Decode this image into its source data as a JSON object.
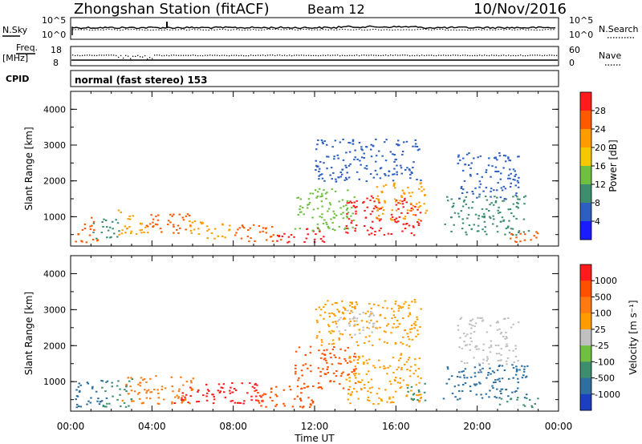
{
  "header": {
    "station": "Zhongshan Station (fitACF)",
    "beam": "Beam 12",
    "date": "10/Nov/2016"
  },
  "status_panels": {
    "noise": {
      "left_label": "N.Sky",
      "right_label": "N.Search",
      "left_ticks": [
        "10^5",
        "10^0"
      ],
      "right_ticks": [
        "10^5",
        "10^0"
      ]
    },
    "freq": {
      "left_label_top": "Freq.",
      "left_label_bottom": "[MHz]",
      "right_label": "Nave",
      "left_ticks": [
        "18",
        "8"
      ],
      "right_ticks": [
        "60",
        "0"
      ]
    },
    "cpid": {
      "label": "CPID",
      "text": "normal (fast stereo) 153"
    }
  },
  "chart_data": [
    {
      "type": "heatmap",
      "title": "",
      "xlabel": "Time UT",
      "ylabel": "Slant Range [km]",
      "x_ticks": [
        "00:00",
        "04:00",
        "08:00",
        "12:00",
        "16:00",
        "20:00",
        "00:00"
      ],
      "y_ticks": [
        "1000",
        "2000",
        "3000",
        "4000"
      ],
      "xlim": [
        0,
        24
      ],
      "ylim": [
        180,
        4500
      ],
      "colorbar": {
        "label": "Power [dB]",
        "ticks": [
          "4",
          "8",
          "12",
          "16",
          "20",
          "24",
          "28"
        ],
        "colors": [
          "#1b1bff",
          "#2c5fbf",
          "#3d8e6e",
          "#6fbf40",
          "#f5c800",
          "#ff9d00",
          "#ff5a00",
          "#ff1b1b"
        ]
      },
      "scatter_regions": [
        {
          "t0": 0.2,
          "t1": 1.3,
          "r0": 300,
          "r1": 1000,
          "color": "#ff5a00"
        },
        {
          "t0": 1.0,
          "t1": 2.4,
          "r0": 400,
          "r1": 1000,
          "color": "#3d8e6e"
        },
        {
          "t0": 2.3,
          "t1": 3.8,
          "r0": 500,
          "r1": 1200,
          "color": "#ff9d00"
        },
        {
          "t0": 3.6,
          "t1": 6.0,
          "r0": 500,
          "r1": 1100,
          "color": "#ff5a00"
        },
        {
          "t0": 5.8,
          "t1": 8.0,
          "r0": 400,
          "r1": 900,
          "color": "#ff9d00"
        },
        {
          "t0": 8.0,
          "t1": 10.4,
          "r0": 300,
          "r1": 800,
          "color": "#ff5a00"
        },
        {
          "t0": 10.0,
          "t1": 12.5,
          "r0": 300,
          "r1": 700,
          "color": "#ff1b1b"
        },
        {
          "t0": 11.0,
          "t1": 14.0,
          "r0": 600,
          "r1": 1800,
          "color": "#6fbf40"
        },
        {
          "t0": 12.0,
          "t1": 17.2,
          "r0": 2000,
          "r1": 3200,
          "color": "#2c5fbf"
        },
        {
          "t0": 13.5,
          "t1": 17.2,
          "r0": 500,
          "r1": 1600,
          "color": "#ff1b1b"
        },
        {
          "t0": 15.0,
          "t1": 17.5,
          "r0": 900,
          "r1": 2000,
          "color": "#ff9d00"
        },
        {
          "t0": 18.3,
          "t1": 22.5,
          "r0": 500,
          "r1": 1600,
          "color": "#3d8e6e"
        },
        {
          "t0": 19.0,
          "t1": 22.0,
          "r0": 1500,
          "r1": 2800,
          "color": "#2c5fbf"
        },
        {
          "t0": 21.0,
          "t1": 23.0,
          "r0": 300,
          "r1": 600,
          "color": "#ff5a00"
        }
      ]
    },
    {
      "type": "heatmap",
      "title": "",
      "xlabel": "Time UT",
      "ylabel": "Slant Range [km]",
      "x_ticks": [
        "00:00",
        "04:00",
        "08:00",
        "12:00",
        "16:00",
        "20:00",
        "00:00"
      ],
      "y_ticks": [
        "1000",
        "2000",
        "3000",
        "4000"
      ],
      "xlim": [
        0,
        24
      ],
      "ylim": [
        180,
        4500
      ],
      "colorbar": {
        "label": "Velocity [m s⁻¹]",
        "ticks": [
          "1000",
          "500",
          "100",
          "25",
          "-25",
          "-100",
          "-500",
          "-1000"
        ],
        "colors": [
          "#1b3fbf",
          "#2c6fa0",
          "#3d8e6e",
          "#6fbf40",
          "#c0c0c0",
          "#ff9d00",
          "#ff7a10",
          "#ff5000",
          "#ff1b1b"
        ]
      },
      "scatter_regions": [
        {
          "t0": 0.2,
          "t1": 1.8,
          "r0": 300,
          "r1": 1100,
          "color": "#2c6fa0"
        },
        {
          "t0": 1.5,
          "t1": 3.0,
          "r0": 300,
          "r1": 1100,
          "color": "#3d8e6e"
        },
        {
          "t0": 2.5,
          "t1": 6.0,
          "r0": 400,
          "r1": 1200,
          "color": "#ff7a10"
        },
        {
          "t0": 5.0,
          "t1": 9.5,
          "r0": 400,
          "r1": 1000,
          "color": "#ff1b1b"
        },
        {
          "t0": 9.0,
          "t1": 12.0,
          "r0": 300,
          "r1": 900,
          "color": "#ff5000"
        },
        {
          "t0": 11.0,
          "t1": 14.0,
          "r0": 800,
          "r1": 2000,
          "color": "#ff5000"
        },
        {
          "t0": 12.0,
          "t1": 17.2,
          "r0": 2000,
          "r1": 3300,
          "color": "#ff9d00"
        },
        {
          "t0": 13.0,
          "t1": 15.0,
          "r0": 2300,
          "r1": 3000,
          "color": "#c0c0c0"
        },
        {
          "t0": 13.5,
          "t1": 17.2,
          "r0": 400,
          "r1": 1800,
          "color": "#ff9d00"
        },
        {
          "t0": 16.5,
          "t1": 17.6,
          "r0": 500,
          "r1": 1000,
          "color": "#3d8e6e"
        },
        {
          "t0": 18.3,
          "t1": 22.5,
          "r0": 500,
          "r1": 1500,
          "color": "#2c6fa0"
        },
        {
          "t0": 19.0,
          "t1": 22.0,
          "r0": 1500,
          "r1": 2800,
          "color": "#c0c0c0"
        },
        {
          "t0": 21.0,
          "t1": 23.0,
          "r0": 300,
          "r1": 600,
          "color": "#3d8e6e"
        }
      ]
    }
  ]
}
